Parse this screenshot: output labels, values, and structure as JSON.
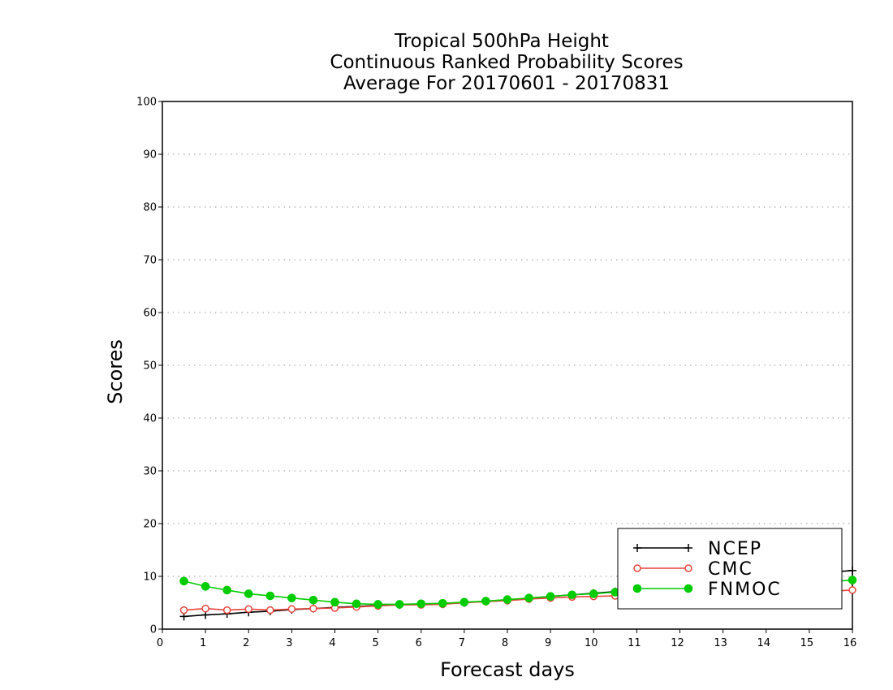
{
  "chart_data": {
    "type": "line",
    "title_lines": [
      "Tropical 500hPa Height",
      "Continuous Ranked Probability Scores",
      "Average For 20170601 - 20170831"
    ],
    "xlabel": "Forecast days",
    "ylabel": "Scores",
    "xlim": [
      0,
      16
    ],
    "ylim": [
      0,
      100
    ],
    "x_ticks": [
      "0",
      "1",
      "2",
      "3",
      "4",
      "5",
      "6",
      "7",
      "8",
      "9",
      "10",
      "11",
      "12",
      "13",
      "14",
      "15",
      "16"
    ],
    "y_ticks": [
      "0",
      "10",
      "20",
      "30",
      "40",
      "50",
      "60",
      "70",
      "80",
      "90",
      "100"
    ],
    "grid": true,
    "legend_position": "bottom-right",
    "x": [
      0.5,
      1,
      1.5,
      2,
      2.5,
      3,
      3.5,
      4,
      4.5,
      5,
      5.5,
      6,
      6.5,
      7,
      7.5,
      8,
      8.5,
      9,
      9.5,
      10,
      10.5,
      11,
      11.5,
      12,
      12.5,
      13,
      13.5,
      14,
      14.5,
      15,
      15.5,
      16
    ],
    "series": [
      {
        "name": "NCEP",
        "color": "#000000",
        "marker": "plus",
        "values": [
          2.4,
          2.7,
          2.9,
          3.2,
          3.4,
          3.7,
          3.9,
          4.1,
          4.3,
          4.5,
          4.6,
          4.7,
          4.8,
          5.0,
          5.3,
          5.5,
          5.8,
          6.2,
          6.5,
          6.8,
          7.1,
          7.4,
          7.8,
          8.1,
          8.5,
          8.9,
          9.3,
          9.7,
          10.1,
          10.4,
          10.8,
          11.1
        ]
      },
      {
        "name": "CMC",
        "color": "#e8453c",
        "marker": "open-circle",
        "values": [
          3.6,
          3.9,
          3.6,
          3.8,
          3.6,
          3.8,
          3.9,
          4.0,
          4.2,
          4.4,
          4.6,
          4.6,
          4.7,
          5.0,
          5.2,
          5.4,
          5.7,
          5.9,
          6.1,
          6.2,
          6.3,
          6.5,
          6.6,
          6.7,
          6.8,
          6.9,
          6.9,
          7.0,
          7.1,
          7.1,
          7.2,
          7.4
        ]
      },
      {
        "name": "FNMOC",
        "color": "#00cc00",
        "marker": "filled-circle",
        "values": [
          9.1,
          8.1,
          7.4,
          6.7,
          6.3,
          5.9,
          5.5,
          5.1,
          4.8,
          4.7,
          4.7,
          4.8,
          4.9,
          5.1,
          5.3,
          5.6,
          5.9,
          6.2,
          6.5,
          6.7,
          7.0,
          7.3,
          7.6,
          7.8,
          8.1,
          8.3,
          8.5,
          8.7,
          8.8,
          8.9,
          9.0,
          9.3
        ]
      }
    ]
  }
}
